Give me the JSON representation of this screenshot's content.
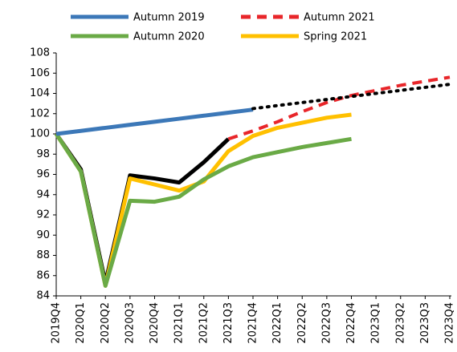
{
  "chart_data": {
    "type": "line",
    "categories": [
      "2019Q4",
      "2020Q1",
      "2020Q2",
      "2020Q3",
      "2020Q4",
      "2021Q1",
      "2021Q2",
      "2021Q3",
      "2021Q4",
      "2022Q1",
      "2022Q2",
      "2022Q3",
      "2022Q4",
      "2023Q1",
      "2023Q2",
      "2023Q3",
      "2023Q4"
    ],
    "series": [
      {
        "name": "Autumn 2019",
        "color": "#3c78b8",
        "dash": "solid",
        "values": [
          100,
          100.3,
          100.6,
          100.9,
          101.2,
          101.5,
          101.8,
          102.1,
          102.4,
          null,
          null,
          null,
          null,
          null,
          null,
          null,
          null
        ]
      },
      {
        "name": "Autumn 2021",
        "color": "#e8262a",
        "dash": "dashed",
        "values": [
          null,
          null,
          null,
          null,
          null,
          null,
          null,
          99.5,
          100.3,
          101.2,
          102.2,
          103.1,
          103.8,
          104.3,
          104.8,
          105.2,
          105.6
        ]
      },
      {
        "name": "Autumn 2020",
        "color": "#6aaa46",
        "dash": "solid",
        "values": [
          100,
          96.3,
          85,
          93.4,
          93.3,
          93.8,
          95.5,
          96.8,
          97.7,
          98.2,
          98.7,
          99.1,
          99.5,
          null,
          null,
          null,
          null
        ]
      },
      {
        "name": "Spring 2021",
        "color": "#ffc000",
        "dash": "solid",
        "values": [
          100,
          96.3,
          85,
          95.6,
          95,
          94.4,
          95.3,
          98.3,
          99.8,
          100.6,
          101.1,
          101.6,
          101.9,
          null,
          null,
          null,
          null
        ]
      },
      {
        "color": "#000000",
        "dash": "solid",
        "values": [
          100,
          96.5,
          85.3,
          95.9,
          95.6,
          95.2,
          97.2,
          99.5,
          null,
          null,
          null,
          null,
          null,
          null,
          null,
          null,
          null
        ]
      },
      {
        "color": "#000000",
        "dash": "dotted",
        "values": [
          null,
          null,
          null,
          null,
          null,
          null,
          null,
          null,
          102.5,
          102.8,
          103.1,
          103.4,
          103.7,
          104,
          104.3,
          104.6,
          104.9
        ]
      }
    ],
    "ylim": [
      84,
      108
    ],
    "yticks": [
      84,
      86,
      88,
      90,
      92,
      94,
      96,
      98,
      100,
      102,
      104,
      106,
      108
    ],
    "grid": false,
    "legend": "top"
  }
}
